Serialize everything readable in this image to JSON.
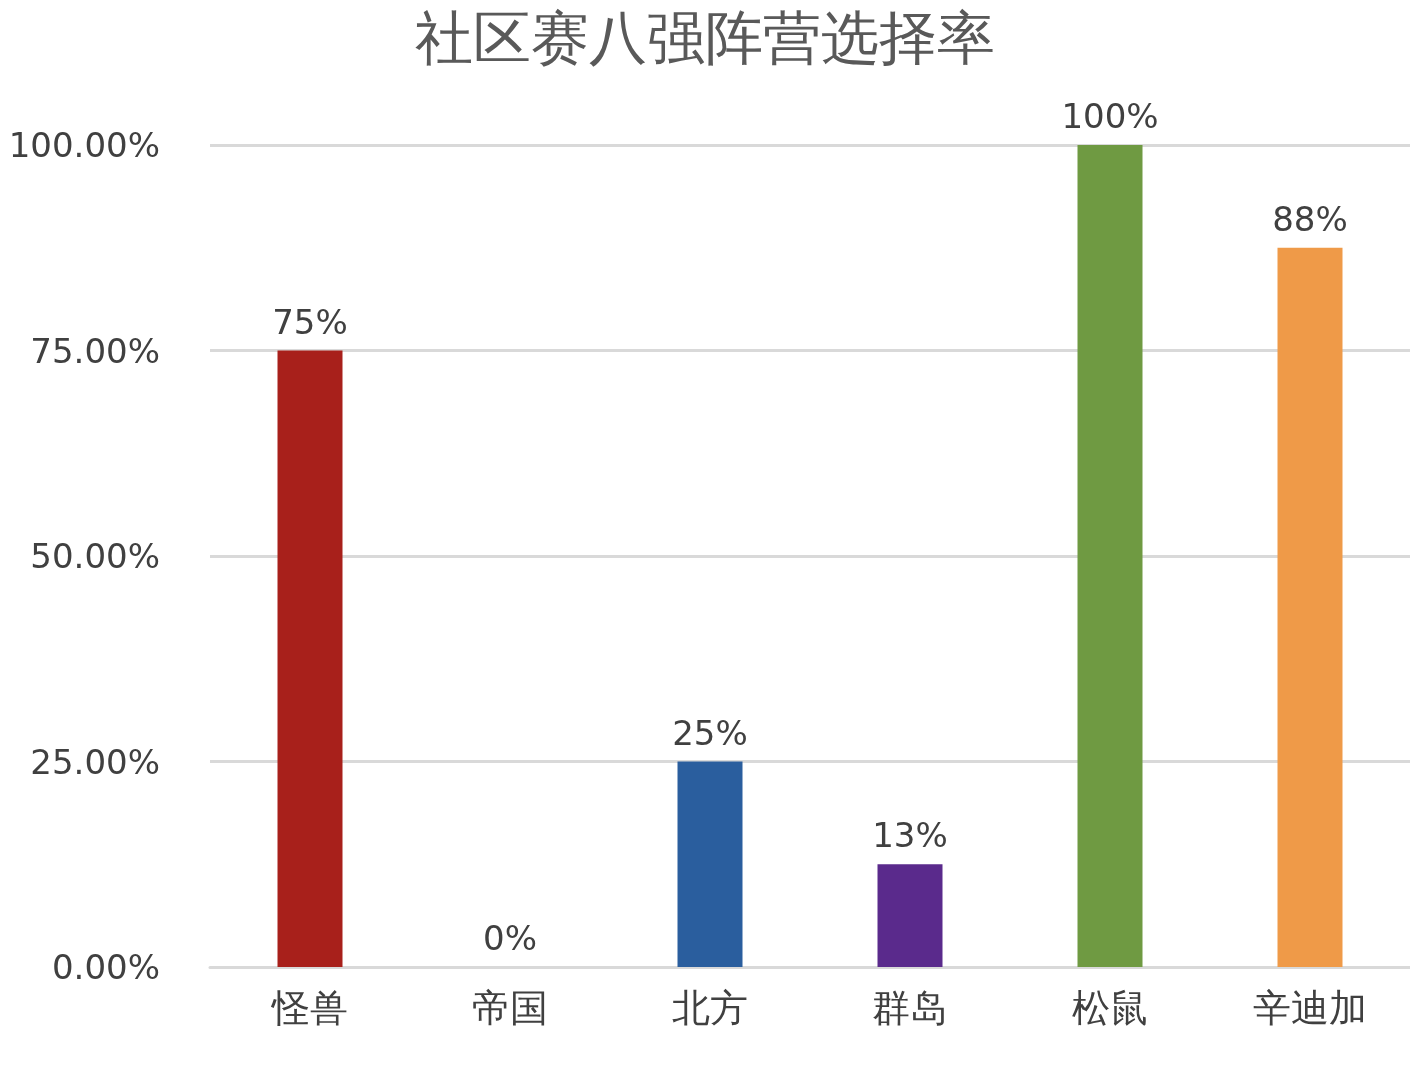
{
  "chart_data": {
    "type": "bar",
    "title": "社区赛八强阵营选择率",
    "categories": [
      "怪兽",
      "帝国",
      "北方",
      "群岛",
      "松鼠",
      "辛迪加"
    ],
    "values": [
      75,
      0,
      25,
      12.5,
      100,
      87.5
    ],
    "colors": [
      "#a8201b",
      "#8a8a8a",
      "#2a5e9e",
      "#5a2a8c",
      "#6f9a42",
      "#ef9a48"
    ],
    "value_labels": [
      "75%",
      "0%",
      "25%",
      "13%",
      "100%",
      "88%"
    ],
    "ylim": [
      0,
      100
    ],
    "yticks": [
      {
        "value": 0,
        "label": "0.00%"
      },
      {
        "value": 25,
        "label": "25.00%"
      },
      {
        "value": 50,
        "label": "50.00%"
      },
      {
        "value": 75,
        "label": "75.00%"
      },
      {
        "value": 100,
        "label": "100.00%"
      }
    ],
    "grid": "y"
  }
}
